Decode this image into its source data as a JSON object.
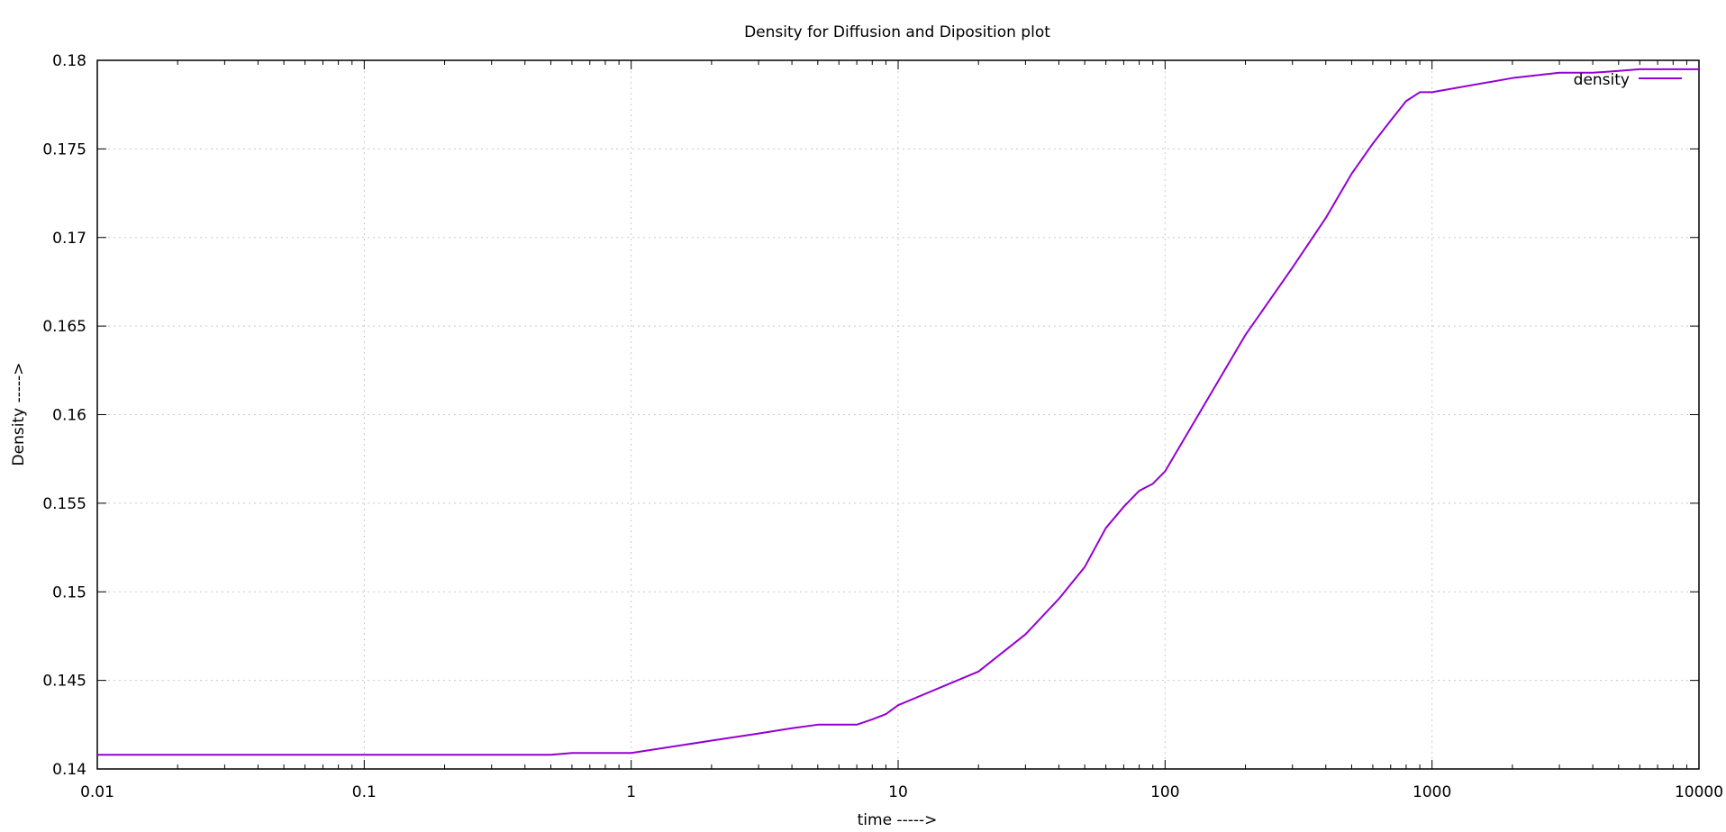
{
  "chart_data": {
    "type": "line",
    "title": "Density for Diffusion and Diposition plot",
    "xlabel": "time ----->",
    "ylabel": "Density ----->",
    "x_scale": "log",
    "xlim": [
      0.01,
      10000
    ],
    "ylim": [
      0.14,
      0.18
    ],
    "x_ticks": [
      0.01,
      0.1,
      1,
      10,
      100,
      1000,
      10000
    ],
    "x_tick_labels": [
      "0.01",
      "0.1",
      "1",
      "10",
      "100",
      "1000",
      "10000"
    ],
    "y_ticks": [
      0.14,
      0.145,
      0.15,
      0.155,
      0.16,
      0.165,
      0.17,
      0.175,
      0.18
    ],
    "y_tick_labels": [
      "0.14",
      "0.145",
      "0.15",
      "0.155",
      "0.16",
      "0.165",
      "0.17",
      "0.175",
      "0.18"
    ],
    "grid": true,
    "legend_position": "top-right",
    "series": [
      {
        "name": "density",
        "color": "#9400d3",
        "x": [
          0.01,
          0.5,
          0.6,
          0.7,
          0.8,
          0.9,
          1,
          2,
          3,
          4,
          5,
          6,
          7,
          8,
          9,
          10,
          20,
          30,
          40,
          50,
          60,
          70,
          80,
          90,
          100,
          200,
          300,
          400,
          500,
          600,
          700,
          800,
          900,
          1000,
          2000,
          3000,
          4000,
          5000,
          6000,
          7000,
          8000,
          9000,
          10000
        ],
        "y": [
          0.1408,
          0.1408,
          0.1409,
          0.1409,
          0.1409,
          0.1409,
          0.1409,
          0.1416,
          0.142,
          0.1423,
          0.1425,
          0.1425,
          0.1425,
          0.1428,
          0.1431,
          0.1436,
          0.1455,
          0.1476,
          0.1496,
          0.1514,
          0.1536,
          0.1548,
          0.1557,
          0.1561,
          0.1568,
          0.1645,
          0.1683,
          0.1711,
          0.1736,
          0.1753,
          0.1766,
          0.1777,
          0.1782,
          0.1782,
          0.179,
          0.1793,
          0.1793,
          0.1794,
          0.1795,
          0.1795,
          0.1795,
          0.1795,
          0.1795
        ]
      }
    ]
  }
}
